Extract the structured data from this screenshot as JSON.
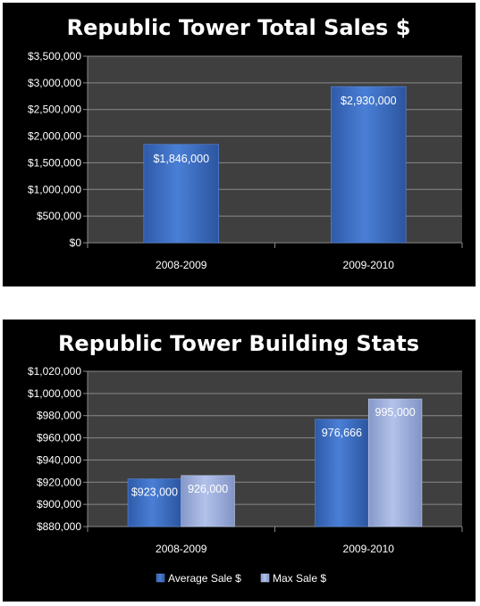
{
  "colors": {
    "panel_bg": "#000000",
    "plot_bg": "#3f3f3f",
    "gridline": "#8a8a8a",
    "average_series": "#3f6fc6",
    "max_series": "#9aaee0",
    "text": "#ffffff"
  },
  "chart_data": [
    {
      "type": "bar",
      "title": "Republic Tower Total Sales $",
      "categories": [
        "2008-2009",
        "2009-2010"
      ],
      "values": [
        1846000,
        2930000
      ],
      "data_labels": [
        "$1,846,000",
        "$2,930,000"
      ],
      "y_ticks": [
        0,
        500000,
        1000000,
        1500000,
        2000000,
        2500000,
        3000000,
        3500000
      ],
      "y_tick_labels": [
        "$0",
        "$500,000",
        "$1,000,000",
        "$1,500,000",
        "$2,000,000",
        "$2,500,000",
        "$3,000,000",
        "$3,500,000"
      ],
      "ylim": [
        0,
        3500000
      ],
      "xlabel": "",
      "ylabel": "",
      "grid": true,
      "legend": "none"
    },
    {
      "type": "bar",
      "title": "Republic Tower Building Stats",
      "categories": [
        "2008-2009",
        "2009-2010"
      ],
      "series": [
        {
          "name": "Average Sale $",
          "values": [
            923000,
            976666
          ],
          "data_labels": [
            "$923,000",
            "976,666"
          ]
        },
        {
          "name": "Max Sale $",
          "values": [
            926000,
            995000
          ],
          "data_labels": [
            "926,000",
            "995,000"
          ]
        }
      ],
      "y_ticks": [
        880000,
        900000,
        920000,
        940000,
        960000,
        980000,
        1000000,
        1020000
      ],
      "y_tick_labels": [
        "$880,000",
        "$900,000",
        "$920,000",
        "$940,000",
        "$960,000",
        "$980,000",
        "$1,000,000",
        "$1,020,000"
      ],
      "ylim": [
        880000,
        1020000
      ],
      "xlabel": "",
      "ylabel": "",
      "grid": true,
      "legend": "bottom"
    }
  ]
}
